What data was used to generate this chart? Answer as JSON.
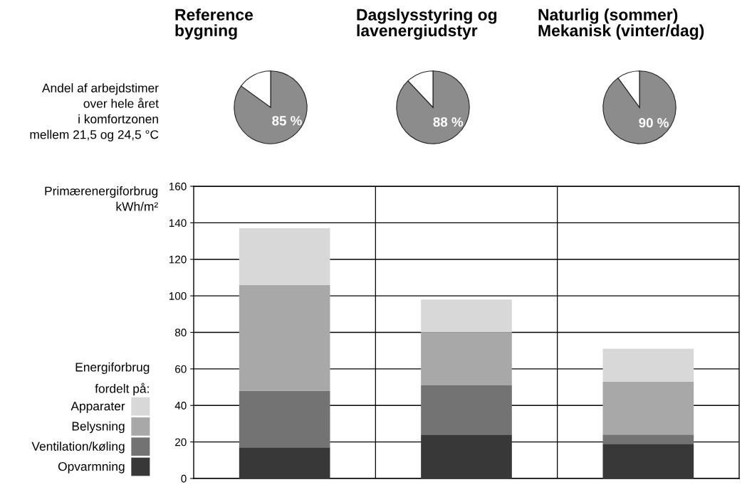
{
  "chart_data": [
    {
      "type": "pie",
      "title": "Reference\nbygning",
      "ylabel": "Andel af arbejdstimer\nover hele året\ni komfortzonen\nmellem 21,5 og 24,5 °C",
      "categories": [
        null,
        null
      ],
      "values": [
        85,
        15
      ],
      "colors": [
        "#8c8c8c",
        "#ffffff"
      ],
      "value_labels": [
        "85 %",
        null
      ]
    },
    {
      "type": "pie",
      "title": "Dagslysstyring og\nlavenergiudstyr",
      "categories": [
        null,
        null
      ],
      "values": [
        88,
        12
      ],
      "colors": [
        "#8c8c8c",
        "#ffffff"
      ],
      "value_labels": [
        "88 %",
        null
      ]
    },
    {
      "type": "pie",
      "title": "Naturlig (sommer)\nMekanisk (vinter/dag)",
      "categories": [
        null,
        null
      ],
      "values": [
        90,
        10
      ],
      "colors": [
        "#8c8c8c",
        "#ffffff"
      ],
      "value_labels": [
        "90 %",
        null
      ]
    },
    {
      "type": "bar",
      "stacked": true,
      "ylabel": "Primærenergiforbrug\nkWh/m²",
      "legend_title": "Energiforbrug\nfordelt på:",
      "legend": "left",
      "grid": true,
      "tick_labels": "y",
      "categories": [
        null,
        null,
        null
      ],
      "ylim": [
        0,
        160
      ],
      "yticks": [
        0,
        20,
        40,
        60,
        80,
        100,
        120,
        140,
        160
      ],
      "series": [
        {
          "name": "Opvarmning",
          "color": "#383838",
          "values": [
            17,
            24,
            19
          ]
        },
        {
          "name": "Ventilation/køling",
          "color": "#737373",
          "values": [
            31,
            27,
            5
          ]
        },
        {
          "name": "Belysning",
          "color": "#a8a8a8",
          "values": [
            58,
            29,
            29
          ]
        },
        {
          "name": "Apparater",
          "color": "#d8d8d8",
          "values": [
            31,
            18,
            18
          ]
        }
      ]
    }
  ]
}
